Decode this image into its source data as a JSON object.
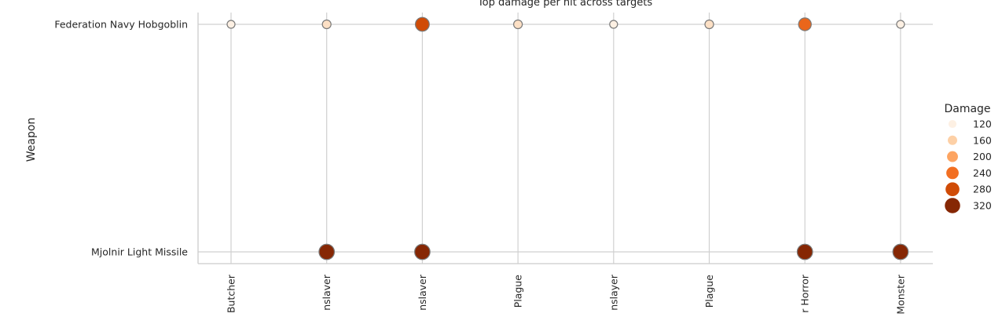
{
  "chart_data": {
    "type": "scatter",
    "title": "Top damage per hit across targets",
    "xlabel": "",
    "ylabel": "Weapon",
    "x_categories": [
      "Butcher",
      "nslaver",
      "nslaver",
      "Plague",
      "nslayer",
      "Plague",
      "r Horror",
      "Monster"
    ],
    "y_categories": [
      "Federation Navy Hobgoblin",
      "Mjolnir Light Missile"
    ],
    "points": [
      {
        "x": 0,
        "y": 0,
        "value": 118
      },
      {
        "x": 1,
        "y": 0,
        "value": 140
      },
      {
        "x": 2,
        "y": 0,
        "value": 280
      },
      {
        "x": 3,
        "y": 0,
        "value": 140
      },
      {
        "x": 4,
        "y": 0,
        "value": 118
      },
      {
        "x": 5,
        "y": 0,
        "value": 140
      },
      {
        "x": 6,
        "y": 0,
        "value": 250
      },
      {
        "x": 7,
        "y": 0,
        "value": 118
      },
      {
        "x": 1,
        "y": 1,
        "value": 320
      },
      {
        "x": 2,
        "y": 1,
        "value": 320
      },
      {
        "x": 6,
        "y": 1,
        "value": 320
      },
      {
        "x": 7,
        "y": 1,
        "value": 320
      }
    ],
    "value_range": [
      118,
      330
    ],
    "legend": {
      "title": "Damage",
      "position": "right",
      "entries": [
        {
          "label": "120",
          "value": 120,
          "color": "#fdf0e3"
        },
        {
          "label": "160",
          "value": 160,
          "color": "#fdd0a6"
        },
        {
          "label": "200",
          "value": 200,
          "color": "#fda461"
        },
        {
          "label": "240",
          "value": 240,
          "color": "#f26f22"
        },
        {
          "label": "280",
          "value": 280,
          "color": "#d04b06"
        },
        {
          "label": "320",
          "value": 320,
          "color": "#862704"
        }
      ]
    },
    "grid": true,
    "colors": {
      "grid": "#d0d0d0",
      "axis": "#cccccc",
      "marker_edge": "#7a7a7a"
    }
  }
}
